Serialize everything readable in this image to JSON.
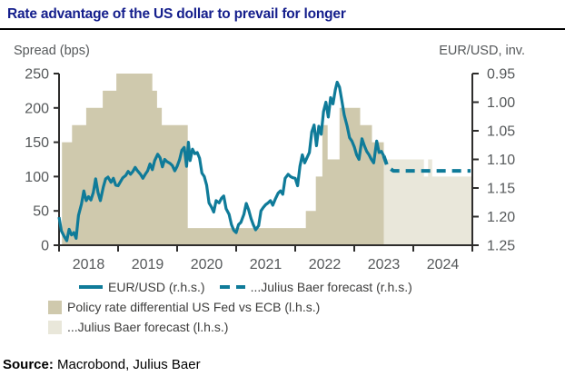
{
  "title": "Rate advantage of the US dollar to prevail for longer",
  "colors": {
    "title": "#141e8c",
    "line": "#0f7b99",
    "area_history": "#cfc9ad",
    "area_forecast": "#e9e7da",
    "axis": "#2e2d2c",
    "tick_text": "#55585a"
  },
  "legend": {
    "items": [
      {
        "swatch": "line",
        "label": "EUR/USD (r.h.s.)"
      },
      {
        "swatch": "dashes",
        "label": "...Julius Baer forecast (r.h.s.)"
      },
      {
        "swatch": "box-dark",
        "label": "Policy rate differential US Fed vs ECB (l.h.s.)"
      },
      {
        "swatch": "box-light",
        "label": "...Julius Baer forecast (l.h.s.)"
      }
    ]
  },
  "source": {
    "label": "Source:",
    "text": " Macrobond, Julius Baer"
  },
  "chart_data": {
    "type": "mixed",
    "x_axis": {
      "range": [
        2018,
        2025
      ],
      "ticks": [
        2018,
        2019,
        2020,
        2021,
        2022,
        2023,
        2024,
        2025
      ],
      "interval_labels": [
        "2018",
        "2019",
        "2020",
        "2021",
        "2022",
        "2023",
        "2024"
      ]
    },
    "left_axis": {
      "label": "Spread (bps)",
      "range": [
        0,
        250
      ],
      "ticks": [
        0,
        50,
        100,
        150,
        200,
        250
      ]
    },
    "right_axis": {
      "label": "EUR/USD, inv.",
      "range": [
        0.95,
        1.25
      ],
      "ticks": [
        0.95,
        1.0,
        1.05,
        1.1,
        1.15,
        1.2,
        1.25
      ],
      "inverted": true
    },
    "series": [
      {
        "id": "policy-differential",
        "name": "Policy rate differential US Fed vs ECB (l.h.s.)",
        "type": "step-area",
        "axis": "left",
        "color": "#cfc9ad",
        "end": 2023.5,
        "points": [
          [
            2018.05,
            150
          ],
          [
            2018.22,
            175
          ],
          [
            2018.46,
            200
          ],
          [
            2018.74,
            225
          ],
          [
            2018.97,
            250
          ],
          [
            2019.58,
            225
          ],
          [
            2019.66,
            200
          ],
          [
            2019.74,
            175
          ],
          [
            2020.18,
            25
          ],
          [
            2022.18,
            50
          ],
          [
            2022.35,
            100
          ],
          [
            2022.46,
            175
          ],
          [
            2022.55,
            125
          ],
          [
            2022.75,
            200
          ],
          [
            2023.1,
            175
          ],
          [
            2023.3,
            150
          ]
        ]
      },
      {
        "id": "policy-differential-forecast",
        "name": "...Julius Baer forecast (l.h.s.)",
        "type": "step-area",
        "axis": "left",
        "color": "#e9e7da",
        "end": 2025,
        "points": [
          [
            2023.5,
            125
          ],
          [
            2024.18,
            100
          ],
          [
            2024.25,
            125
          ],
          [
            2024.32,
            100
          ]
        ]
      },
      {
        "id": "eurusd",
        "name": "EUR/USD (r.h.s.)",
        "type": "line",
        "axis": "right",
        "color": "#0f7b99",
        "points": [
          [
            2018.0,
            1.201
          ],
          [
            2018.04,
            1.225
          ],
          [
            2018.09,
            1.235
          ],
          [
            2018.13,
            1.242
          ],
          [
            2018.17,
            1.222
          ],
          [
            2018.21,
            1.232
          ],
          [
            2018.25,
            1.228
          ],
          [
            2018.29,
            1.238
          ],
          [
            2018.33,
            1.198
          ],
          [
            2018.38,
            1.178
          ],
          [
            2018.42,
            1.155
          ],
          [
            2018.46,
            1.172
          ],
          [
            2018.5,
            1.165
          ],
          [
            2018.54,
            1.171
          ],
          [
            2018.58,
            1.158
          ],
          [
            2018.62,
            1.134
          ],
          [
            2018.66,
            1.158
          ],
          [
            2018.7,
            1.172
          ],
          [
            2018.75,
            1.148
          ],
          [
            2018.79,
            1.134
          ],
          [
            2018.83,
            1.131
          ],
          [
            2018.88,
            1.14
          ],
          [
            2018.92,
            1.133
          ],
          [
            2018.96,
            1.145
          ],
          [
            2019.0,
            1.146
          ],
          [
            2019.04,
            1.139
          ],
          [
            2019.08,
            1.132
          ],
          [
            2019.13,
            1.128
          ],
          [
            2019.17,
            1.121
          ],
          [
            2019.21,
            1.126
          ],
          [
            2019.25,
            1.121
          ],
          [
            2019.29,
            1.114
          ],
          [
            2019.33,
            1.12
          ],
          [
            2019.38,
            1.126
          ],
          [
            2019.42,
            1.133
          ],
          [
            2019.46,
            1.126
          ],
          [
            2019.5,
            1.12
          ],
          [
            2019.54,
            1.108
          ],
          [
            2019.58,
            1.118
          ],
          [
            2019.62,
            1.102
          ],
          [
            2019.67,
            1.091
          ],
          [
            2019.71,
            1.097
          ],
          [
            2019.75,
            1.113
          ],
          [
            2019.79,
            1.1
          ],
          [
            2019.83,
            1.104
          ],
          [
            2019.88,
            1.107
          ],
          [
            2019.92,
            1.111
          ],
          [
            2019.96,
            1.12
          ],
          [
            2020.0,
            1.112
          ],
          [
            2020.04,
            1.101
          ],
          [
            2020.08,
            1.084
          ],
          [
            2020.12,
            1.079
          ],
          [
            2020.16,
            1.112
          ],
          [
            2020.19,
            1.07
          ],
          [
            2020.22,
            1.102
          ],
          [
            2020.26,
            1.082
          ],
          [
            2020.3,
            1.09
          ],
          [
            2020.34,
            1.088
          ],
          [
            2020.38,
            1.098
          ],
          [
            2020.42,
            1.124
          ],
          [
            2020.46,
            1.13
          ],
          [
            2020.5,
            1.145
          ],
          [
            2020.54,
            1.176
          ],
          [
            2020.58,
            1.183
          ],
          [
            2020.62,
            1.192
          ],
          [
            2020.66,
            1.172
          ],
          [
            2020.71,
            1.176
          ],
          [
            2020.75,
            1.168
          ],
          [
            2020.79,
            1.164
          ],
          [
            2020.83,
            1.186
          ],
          [
            2020.88,
            1.196
          ],
          [
            2020.92,
            1.214
          ],
          [
            2020.96,
            1.224
          ],
          [
            2021.0,
            1.228
          ],
          [
            2021.04,
            1.214
          ],
          [
            2021.08,
            1.21
          ],
          [
            2021.13,
            1.196
          ],
          [
            2021.17,
            1.177
          ],
          [
            2021.21,
            1.188
          ],
          [
            2021.25,
            1.203
          ],
          [
            2021.29,
            1.214
          ],
          [
            2021.33,
            1.223
          ],
          [
            2021.38,
            1.216
          ],
          [
            2021.42,
            1.19
          ],
          [
            2021.46,
            1.184
          ],
          [
            2021.5,
            1.179
          ],
          [
            2021.54,
            1.176
          ],
          [
            2021.58,
            1.172
          ],
          [
            2021.62,
            1.18
          ],
          [
            2021.66,
            1.17
          ],
          [
            2021.71,
            1.159
          ],
          [
            2021.75,
            1.155
          ],
          [
            2021.79,
            1.161
          ],
          [
            2021.83,
            1.133
          ],
          [
            2021.88,
            1.126
          ],
          [
            2021.92,
            1.13
          ],
          [
            2021.96,
            1.132
          ],
          [
            2022.0,
            1.133
          ],
          [
            2022.04,
            1.146
          ],
          [
            2022.08,
            1.112
          ],
          [
            2022.12,
            1.092
          ],
          [
            2022.16,
            1.106
          ],
          [
            2022.2,
            1.097
          ],
          [
            2022.24,
            1.088
          ],
          [
            2022.28,
            1.052
          ],
          [
            2022.32,
            1.04
          ],
          [
            2022.36,
            1.076
          ],
          [
            2022.4,
            1.042
          ],
          [
            2022.44,
            1.056
          ],
          [
            2022.48,
            1.016
          ],
          [
            2022.52,
            1.0
          ],
          [
            2022.56,
            1.026
          ],
          [
            2022.6,
            0.992
          ],
          [
            2022.64,
            1.003
          ],
          [
            2022.68,
            0.978
          ],
          [
            2022.71,
            0.965
          ],
          [
            2022.75,
            0.974
          ],
          [
            2022.79,
            0.997
          ],
          [
            2022.83,
            1.022
          ],
          [
            2022.88,
            1.042
          ],
          [
            2022.92,
            1.062
          ],
          [
            2022.96,
            1.068
          ],
          [
            2023.0,
            1.078
          ],
          [
            2023.04,
            1.092
          ],
          [
            2023.08,
            1.1
          ],
          [
            2023.13,
            1.064
          ],
          [
            2023.17,
            1.076
          ],
          [
            2023.21,
            1.086
          ],
          [
            2023.25,
            1.092
          ],
          [
            2023.29,
            1.1
          ],
          [
            2023.33,
            1.106
          ],
          [
            2023.38,
            1.068
          ],
          [
            2023.42,
            1.088
          ],
          [
            2023.46,
            1.086
          ],
          [
            2023.5,
            1.094
          ]
        ]
      },
      {
        "id": "eurusd-forecast",
        "name": "...Julius Baer forecast (r.h.s.)",
        "type": "dashed-line",
        "axis": "right",
        "color": "#0f7b99",
        "points": [
          [
            2023.5,
            1.094
          ],
          [
            2023.56,
            1.112
          ],
          [
            2023.66,
            1.12
          ],
          [
            2024.3,
            1.12
          ],
          [
            2024.97,
            1.12
          ]
        ]
      }
    ]
  }
}
